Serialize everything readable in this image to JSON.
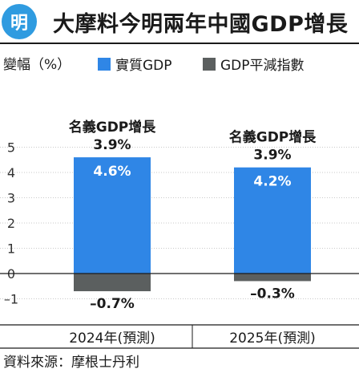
{
  "header": {
    "logo_text": "明",
    "title": "大摩料今明兩年中國GDP增長"
  },
  "legend": {
    "y_unit": "變幅（%）",
    "items": [
      {
        "label": "實質GDP",
        "color": "#2f86e6"
      },
      {
        "label": "GDP平減指數",
        "color": "#5b5f5f"
      }
    ]
  },
  "chart_data": {
    "type": "bar",
    "title": "大摩料今明兩年中國GDP增長",
    "ylabel": "變幅（%）",
    "ylim": [
      -1.4,
      5.4
    ],
    "yticks": [
      5,
      4,
      3,
      2,
      1,
      0,
      -1
    ],
    "ytick_labels": [
      "5",
      "4",
      "3",
      "2",
      "1",
      "0",
      "–1"
    ],
    "categories": [
      "2024年(預測)",
      "2025年(預測)"
    ],
    "series": [
      {
        "name": "實質GDP",
        "color": "#2f86e6",
        "values": [
          4.6,
          4.2
        ],
        "labels": [
          "4.6%",
          "4.2%"
        ]
      },
      {
        "name": "GDP平減指數",
        "color": "#5b5f5f",
        "values": [
          -0.7,
          -0.3
        ],
        "labels": [
          "–0.7%",
          "–0.3%"
        ]
      }
    ],
    "annotations": [
      {
        "line1": "名義GDP增長",
        "line2": "3.9%"
      },
      {
        "line1": "名義GDP增長",
        "line2": "3.9%"
      }
    ],
    "grid": true
  },
  "footer": {
    "source": "資料來源：摩根士丹利"
  }
}
